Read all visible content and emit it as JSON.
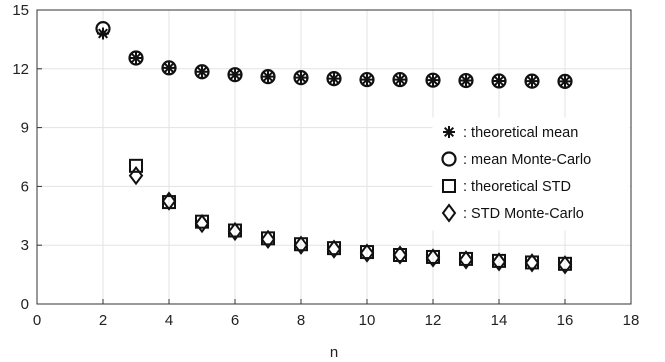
{
  "chart_data": {
    "type": "scatter",
    "xlabel": "n",
    "ylabel": "",
    "title": "",
    "xlim": [
      0,
      18
    ],
    "ylim": [
      0,
      15
    ],
    "xticks": [
      0,
      2,
      4,
      6,
      8,
      10,
      12,
      14,
      16,
      18
    ],
    "yticks": [
      0,
      3,
      6,
      9,
      12,
      15
    ],
    "grid": true,
    "legend_position": "right",
    "series": [
      {
        "name": ": theoretical mean",
        "marker": "asterisk",
        "x": [
          2,
          3,
          4,
          5,
          6,
          7,
          8,
          9,
          10,
          11,
          12,
          13,
          14,
          15,
          16
        ],
        "y": [
          13.8,
          12.55,
          12.05,
          11.85,
          11.7,
          11.6,
          11.55,
          11.5,
          11.45,
          11.45,
          11.42,
          11.4,
          11.38,
          11.37,
          11.36
        ]
      },
      {
        "name": ": mean Monte-Carlo",
        "marker": "circle",
        "x": [
          2,
          3,
          4,
          5,
          6,
          7,
          8,
          9,
          10,
          11,
          12,
          13,
          14,
          15,
          16
        ],
        "y": [
          14.05,
          12.55,
          12.05,
          11.85,
          11.7,
          11.6,
          11.55,
          11.5,
          11.45,
          11.45,
          11.42,
          11.4,
          11.38,
          11.37,
          11.36
        ]
      },
      {
        "name": ": theoretical STD",
        "marker": "square",
        "x": [
          3,
          4,
          5,
          6,
          7,
          8,
          9,
          10,
          11,
          12,
          13,
          14,
          15,
          16
        ],
        "y": [
          7.05,
          5.2,
          4.2,
          3.75,
          3.35,
          3.05,
          2.85,
          2.65,
          2.5,
          2.4,
          2.3,
          2.2,
          2.12,
          2.05
        ]
      },
      {
        "name": ": STD Monte-Carlo",
        "marker": "diamond",
        "x": [
          3,
          4,
          5,
          6,
          7,
          8,
          9,
          10,
          11,
          12,
          13,
          14,
          15,
          16
        ],
        "y": [
          6.55,
          5.25,
          4.1,
          3.7,
          3.3,
          3.0,
          2.8,
          2.6,
          2.5,
          2.35,
          2.25,
          2.15,
          2.1,
          2.0
        ]
      }
    ]
  }
}
